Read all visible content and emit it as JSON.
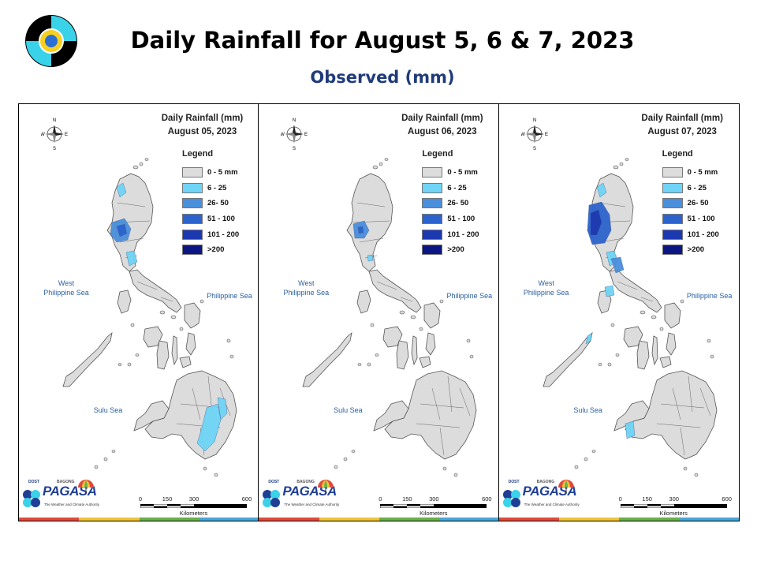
{
  "header": {
    "title": "Daily Rainfall for August 5, 6 & 7, 2023",
    "subtitle": "Observed (mm)"
  },
  "legend_items": [
    {
      "label": "0 - 5 mm",
      "color": "#dcdcdc"
    },
    {
      "label": "6 - 25",
      "color": "#6fd4f5"
    },
    {
      "label": "26- 50",
      "color": "#4a8fdb"
    },
    {
      "label": "51 - 100",
      "color": "#2d63cc"
    },
    {
      "label": "101 - 200",
      "color": "#1d39b0"
    },
    {
      "label": ">200",
      "color": "#0c1682"
    }
  ],
  "panels": [
    {
      "title_line1": "Daily Rainfall (mm)",
      "title_line2": "August 05, 2023",
      "legend_title": "Legend",
      "sea_west": "West\nPhilippine Sea",
      "sea_phil": "Philippine Sea",
      "sea_sulu": "Sulu Sea",
      "compass": {
        "n": "N",
        "s": "S",
        "e": "E",
        "w": "W"
      },
      "scale_ticks": [
        "0",
        "150",
        "300",
        "600"
      ],
      "scale_unit": "Kilometers",
      "rain_zones": [
        "north-tip-light",
        "northwest-heavy",
        "northwest-core",
        "central-luzon-light",
        "mindanao-south-light",
        "mindanao-southeast-light"
      ]
    },
    {
      "title_line1": "Daily Rainfall (mm)",
      "title_line2": "August 06, 2023",
      "legend_title": "Legend",
      "sea_west": "West\nPhilippine Sea",
      "sea_phil": "Philippine Sea",
      "sea_sulu": "Sulu Sea",
      "compass": {
        "n": "N",
        "s": "S",
        "e": "E",
        "w": "W"
      },
      "scale_ticks": [
        "0",
        "150",
        "300",
        "600"
      ],
      "scale_unit": "Kilometers",
      "rain_zones": [
        "northwest-moderate",
        "northwest-core-small",
        "central-luzon-small"
      ]
    },
    {
      "title_line1": "Daily Rainfall (mm)",
      "title_line2": "August 07, 2023",
      "legend_title": "Legend",
      "sea_west": "West\nPhilippine Sea",
      "sea_phil": "Philippine Sea",
      "sea_sulu": "Sulu Sea",
      "compass": {
        "n": "N",
        "s": "S",
        "e": "E",
        "w": "W"
      },
      "scale_ticks": [
        "0",
        "150",
        "300",
        "600"
      ],
      "scale_unit": "Kilometers",
      "rain_zones": [
        "north-tip-light",
        "northwest-extensive",
        "northwest-very-heavy",
        "central-luzon-light",
        "central-luzon-moderate",
        "southwest-luzon-light",
        "palawan-north-light",
        "mindanao-southwest-light"
      ]
    }
  ],
  "pagasa_logo": {
    "doost": "DOST",
    "bagong": "BAGONG",
    "word": "PAGASA",
    "tagline": "The Weather and Climate Authority"
  },
  "colors": {
    "land": "#dcdcdc",
    "land_stroke": "#555555",
    "sea_text": "#2a5fa0",
    "strip": [
      "#e04a3a",
      "#f0c43a",
      "#6ab04c",
      "#4aa6d8"
    ]
  }
}
